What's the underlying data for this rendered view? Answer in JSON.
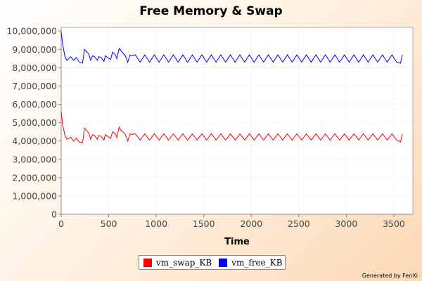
{
  "chart_data": {
    "type": "line",
    "title": "Free Memory & Swap",
    "xlabel": "Time",
    "ylabel": "",
    "xlim": [
      0,
      3700
    ],
    "ylim": [
      0,
      10200000
    ],
    "x_ticks": [
      0,
      500,
      1000,
      1500,
      2000,
      2500,
      3000,
      3500
    ],
    "y_ticks": [
      0,
      1000000,
      2000000,
      3000000,
      4000000,
      5000000,
      6000000,
      7000000,
      8000000,
      9000000,
      10000000
    ],
    "x_tick_labels": [
      "0",
      "500",
      "1000",
      "1500",
      "2000",
      "2500",
      "3000",
      "3500"
    ],
    "y_tick_labels": [
      "0",
      "1,000,000",
      "2,000,000",
      "3,000,000",
      "4,000,000",
      "5,000,000",
      "6,000,000",
      "7,000,000",
      "8,000,000",
      "9,000,000",
      "10,000,000"
    ],
    "grid": true,
    "legend_position": "bottom",
    "series": [
      {
        "name": "vm_swap_KB",
        "color": "#ff0000",
        "x": [
          0,
          15,
          40,
          60,
          100,
          130,
          160,
          190,
          225,
          245,
          270,
          290,
          310,
          330,
          350,
          380,
          395,
          420,
          450,
          465,
          490,
          520,
          540,
          570,
          585,
          610,
          625,
          650,
          675,
          700,
          725,
          745,
          780,
          830,
          880,
          930,
          980,
          1030,
          1080,
          1130,
          1180,
          1230,
          1280,
          1330,
          1380,
          1430,
          1480,
          1530,
          1580,
          1630,
          1680,
          1730,
          1780,
          1830,
          1880,
          1930,
          1980,
          2030,
          2080,
          2130,
          2180,
          2230,
          2280,
          2330,
          2380,
          2430,
          2480,
          2530,
          2580,
          2630,
          2680,
          2730,
          2780,
          2830,
          2880,
          2930,
          2980,
          3030,
          3080,
          3130,
          3180,
          3230,
          3280,
          3330,
          3380,
          3430,
          3480,
          3530,
          3570,
          3590
        ],
        "values": [
          5600000,
          4900000,
          4300000,
          4100000,
          4200000,
          4000000,
          4150000,
          3950000,
          3900000,
          4700000,
          4550000,
          4450000,
          4100000,
          4350000,
          4300000,
          4100000,
          4300000,
          4250000,
          4050000,
          4350000,
          4250000,
          4150000,
          4500000,
          4400000,
          4200000,
          4750000,
          4600000,
          4500000,
          4350000,
          4000000,
          4400000,
          4350000,
          4400000,
          4050000,
          4400000,
          4050000,
          4400000,
          4050000,
          4400000,
          4050000,
          4400000,
          4050000,
          4400000,
          4050000,
          4400000,
          4050000,
          4400000,
          4050000,
          4400000,
          4050000,
          4400000,
          4050000,
          4400000,
          4050000,
          4400000,
          4050000,
          4400000,
          4050000,
          4400000,
          4050000,
          4400000,
          4050000,
          4400000,
          4050000,
          4400000,
          4050000,
          4400000,
          4050000,
          4400000,
          4050000,
          4400000,
          4050000,
          4400000,
          4050000,
          4400000,
          4050000,
          4400000,
          4050000,
          4400000,
          4050000,
          4400000,
          4050000,
          4400000,
          4050000,
          4400000,
          4050000,
          4400000,
          4050000,
          3950000,
          4400000
        ]
      },
      {
        "name": "vm_free_KB",
        "color": "#0000ff",
        "x": [
          0,
          15,
          40,
          60,
          100,
          130,
          160,
          190,
          225,
          245,
          270,
          290,
          310,
          330,
          350,
          380,
          395,
          420,
          450,
          465,
          490,
          520,
          540,
          570,
          585,
          610,
          625,
          650,
          675,
          700,
          725,
          745,
          780,
          830,
          880,
          930,
          980,
          1030,
          1080,
          1130,
          1180,
          1230,
          1280,
          1330,
          1380,
          1430,
          1480,
          1530,
          1580,
          1630,
          1680,
          1730,
          1780,
          1830,
          1880,
          1930,
          1980,
          2030,
          2080,
          2130,
          2180,
          2230,
          2280,
          2330,
          2380,
          2430,
          2480,
          2530,
          2580,
          2630,
          2680,
          2730,
          2780,
          2830,
          2880,
          2930,
          2980,
          3030,
          3080,
          3130,
          3180,
          3230,
          3280,
          3330,
          3380,
          3430,
          3480,
          3530,
          3570,
          3590
        ],
        "values": [
          9950000,
          9300000,
          8600000,
          8400000,
          8600000,
          8400000,
          8550000,
          8300000,
          8250000,
          9000000,
          8850000,
          8750000,
          8400000,
          8650000,
          8600000,
          8400000,
          8600000,
          8550000,
          8350000,
          8650000,
          8550000,
          8450000,
          8850000,
          8700000,
          8500000,
          9050000,
          8950000,
          8800000,
          8650000,
          8300000,
          8700000,
          8650000,
          8700000,
          8300000,
          8700000,
          8300000,
          8700000,
          8300000,
          8700000,
          8300000,
          8700000,
          8300000,
          8700000,
          8300000,
          8700000,
          8300000,
          8700000,
          8300000,
          8700000,
          8300000,
          8700000,
          8300000,
          8700000,
          8300000,
          8700000,
          8300000,
          8700000,
          8300000,
          8700000,
          8300000,
          8700000,
          8300000,
          8700000,
          8300000,
          8700000,
          8300000,
          8700000,
          8300000,
          8700000,
          8300000,
          8700000,
          8300000,
          8700000,
          8300000,
          8700000,
          8300000,
          8700000,
          8300000,
          8700000,
          8300000,
          8700000,
          8300000,
          8700000,
          8300000,
          8700000,
          8300000,
          8700000,
          8300000,
          8250000,
          8700000
        ]
      }
    ]
  },
  "footer": {
    "generated_by": "Generated by FenXi"
  }
}
